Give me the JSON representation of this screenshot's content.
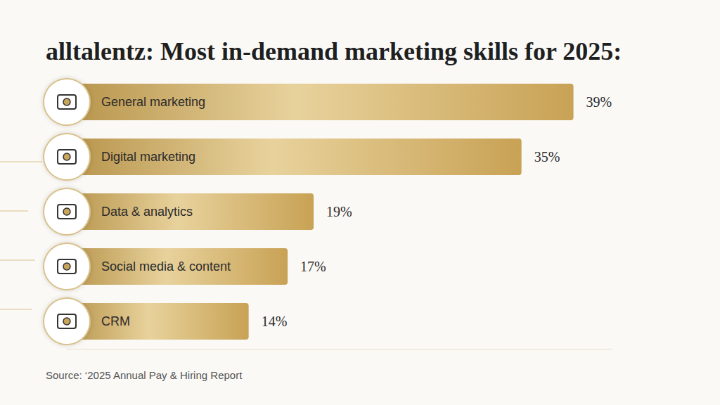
{
  "chart_data": {
    "type": "bar",
    "orientation": "horizontal",
    "title": "alltalentz: Most in-demand marketing skills for 2025:",
    "subtitle": "Source: ‘2025 Annual Pay & Hiring Report",
    "categories": [
      "General marketing",
      "Digital marketing",
      "Data & analytics",
      "Social media & content",
      "CRM"
    ],
    "values": [
      39,
      35,
      19,
      17,
      14
    ],
    "value_labels": [
      "39%",
      "35%",
      "19%",
      "17%",
      "14%"
    ],
    "color": "#d6b160",
    "xlim": [
      0,
      42
    ],
    "grid": false,
    "data_labels": true,
    "tick_labels": false
  }
}
